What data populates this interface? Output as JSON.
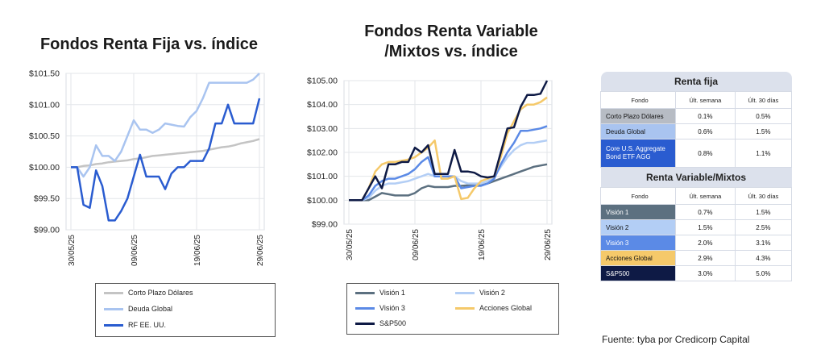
{
  "chart_data": [
    {
      "type": "line",
      "title": "Fondos Renta Fija vs. índice",
      "ylim": [
        99.0,
        101.5
      ],
      "ytick_labels": [
        "$101.50",
        "$101.00",
        "$100.50",
        "$100.00",
        "$99.50",
        "$99.00"
      ],
      "yticks": [
        101.5,
        101.0,
        100.5,
        100.0,
        99.5,
        99.0
      ],
      "xtick_labels": [
        "30/05/25",
        "09/06/25",
        "19/06/25",
        "29/06/25"
      ],
      "xtick_index": [
        0,
        10,
        20,
        30
      ],
      "grid": true,
      "legend_position": "bottom",
      "series": [
        {
          "name": "Corto Plazo Dólares",
          "color": "#c4c4c4",
          "width": 2.5,
          "values": [
            100.0,
            100.0,
            100.02,
            100.03,
            100.05,
            100.06,
            100.08,
            100.09,
            100.1,
            100.11,
            100.13,
            100.14,
            100.16,
            100.18,
            100.19,
            100.2,
            100.21,
            100.22,
            100.23,
            100.24,
            100.25,
            100.26,
            100.28,
            100.3,
            100.32,
            100.33,
            100.35,
            100.38,
            100.4,
            100.42,
            100.45
          ]
        },
        {
          "name": "Deuda Global",
          "color": "#a9c4f0",
          "width": 2.5,
          "values": [
            100.0,
            100.0,
            99.85,
            100.0,
            100.35,
            100.18,
            100.18,
            100.1,
            100.25,
            100.5,
            100.75,
            100.6,
            100.6,
            100.55,
            100.6,
            100.7,
            100.68,
            100.66,
            100.65,
            100.8,
            100.9,
            101.1,
            101.35,
            101.35,
            101.35,
            101.35,
            101.35,
            101.35,
            101.35,
            101.4,
            101.5
          ]
        },
        {
          "name": "RF EE. UU.",
          "color": "#2a5cd0",
          "width": 2.5,
          "values": [
            100.0,
            100.0,
            99.4,
            99.35,
            99.95,
            99.7,
            99.15,
            99.15,
            99.3,
            99.5,
            99.85,
            100.2,
            99.85,
            99.85,
            99.85,
            99.65,
            99.9,
            100.0,
            100.0,
            100.1,
            100.1,
            100.1,
            100.3,
            100.7,
            100.7,
            101.0,
            100.7,
            100.7,
            100.7,
            100.7,
            101.1
          ]
        }
      ]
    },
    {
      "type": "line",
      "title": "Fondos Renta Variable /Mixtos vs. índice",
      "ylim": [
        99.0,
        105.0
      ],
      "ytick_labels": [
        "$105.00",
        "$104.00",
        "$103.00",
        "$102.00",
        "$101.00",
        "$100.00",
        "$99.00"
      ],
      "yticks": [
        105,
        104,
        103,
        102,
        101,
        100,
        99
      ],
      "xtick_labels": [
        "30/05/25",
        "09/06/25",
        "19/06/25",
        "29/06/25"
      ],
      "xtick_index": [
        0,
        10,
        20,
        30
      ],
      "grid": true,
      "legend_position": "bottom",
      "series": [
        {
          "name": "Visión 1",
          "color": "#5c7080",
          "width": 2.5,
          "values": [
            100.0,
            100.0,
            100.0,
            100.0,
            100.15,
            100.3,
            100.25,
            100.2,
            100.2,
            100.2,
            100.3,
            100.5,
            100.6,
            100.55,
            100.55,
            100.55,
            100.6,
            100.6,
            100.62,
            100.62,
            100.62,
            100.7,
            100.8,
            100.9,
            101.0,
            101.1,
            101.2,
            101.3,
            101.4,
            101.45,
            101.5
          ]
        },
        {
          "name": "Visión 2",
          "color": "#b3cef5",
          "width": 2.5,
          "values": [
            100.0,
            100.0,
            100.0,
            100.1,
            100.4,
            100.6,
            100.7,
            100.7,
            100.75,
            100.8,
            100.9,
            101.0,
            101.1,
            101.0,
            101.0,
            101.0,
            101.0,
            100.8,
            100.7,
            100.7,
            100.7,
            100.8,
            101.0,
            101.4,
            101.8,
            102.1,
            102.3,
            102.4,
            102.4,
            102.45,
            102.5
          ]
        },
        {
          "name": "Visión 3",
          "color": "#5b8ae6",
          "width": 2.5,
          "values": [
            100.0,
            100.0,
            100.0,
            100.2,
            100.6,
            100.8,
            100.9,
            100.9,
            101.0,
            101.1,
            101.3,
            101.6,
            101.8,
            101.0,
            101.0,
            101.0,
            101.0,
            100.5,
            100.55,
            100.6,
            100.6,
            100.7,
            100.9,
            101.5,
            102.0,
            102.4,
            102.9,
            102.9,
            102.95,
            103.0,
            103.1
          ]
        },
        {
          "name": "Acciones Global",
          "color": "#f5c96a",
          "width": 2.5,
          "values": [
            100.0,
            100.0,
            100.0,
            100.5,
            101.2,
            101.5,
            101.6,
            101.6,
            101.65,
            101.7,
            101.8,
            102.0,
            102.2,
            102.5,
            100.9,
            100.9,
            101.0,
            100.05,
            100.1,
            100.5,
            100.8,
            100.9,
            101.0,
            101.8,
            102.8,
            103.3,
            103.8,
            104.0,
            104.0,
            104.1,
            104.3
          ]
        },
        {
          "name": "S&P500",
          "color": "#0e1a45",
          "width": 2.5,
          "values": [
            100.0,
            100.0,
            100.0,
            100.5,
            101.0,
            100.5,
            101.5,
            101.5,
            101.6,
            101.6,
            102.2,
            102.0,
            102.3,
            101.1,
            101.1,
            101.1,
            102.1,
            101.2,
            101.2,
            101.15,
            101.0,
            100.95,
            101.0,
            102.0,
            103.0,
            103.05,
            103.9,
            104.4,
            104.4,
            104.45,
            105.0
          ]
        }
      ]
    }
  ],
  "titles": {
    "chart1": "Fondos Renta Fija vs. índice",
    "chart2_line1": "Fondos Renta Variable",
    "chart2_line2": "/Mixtos vs. índice"
  },
  "legend1": [
    "Corto Plazo Dólares",
    "Deuda Global",
    "RF EE. UU."
  ],
  "legend2": [
    "Visión 1",
    "Visión 2",
    "Visión 3",
    "Acciones Global",
    "S&P500"
  ],
  "table": {
    "renta_fija": {
      "title": "Renta fija",
      "headers": [
        "Fondo",
        "Últ. semana",
        "Últ. 30 días"
      ],
      "rows": [
        {
          "fund": "Corto Plazo Dólares",
          "week": "0.1%",
          "month": "0.5%",
          "color": "#b7bcc4"
        },
        {
          "fund": "Deuda Global",
          "week": "0.6%",
          "month": "1.5%",
          "color": "#a9c4f0"
        },
        {
          "fund": "Core U.S. Aggregate Bond ETF AGG",
          "week": "0.8%",
          "month": "1.1%",
          "color": "#2a5cd0"
        }
      ]
    },
    "renta_variable": {
      "title": "Renta Variable/Mixtos",
      "headers": [
        "Fondo",
        "Últ. semana",
        "Últ. 30 días"
      ],
      "rows": [
        {
          "fund": "Visión 1",
          "week": "0.7%",
          "month": "1.5%",
          "color": "#5c7080"
        },
        {
          "fund": "Visión 2",
          "week": "1.5%",
          "month": "2.5%",
          "color": "#b3cef5"
        },
        {
          "fund": "Visión 3",
          "week": "2.0%",
          "month": "3.1%",
          "color": "#5b8ae6"
        },
        {
          "fund": "Acciones Global",
          "week": "2.9%",
          "month": "4.3%",
          "color": "#f5c96a"
        },
        {
          "fund": "S&P500",
          "week": "3.0%",
          "month": "5.0%",
          "color": "#0e1a45"
        }
      ]
    }
  },
  "source": "Fuente: tyba por Credicorp Capital"
}
